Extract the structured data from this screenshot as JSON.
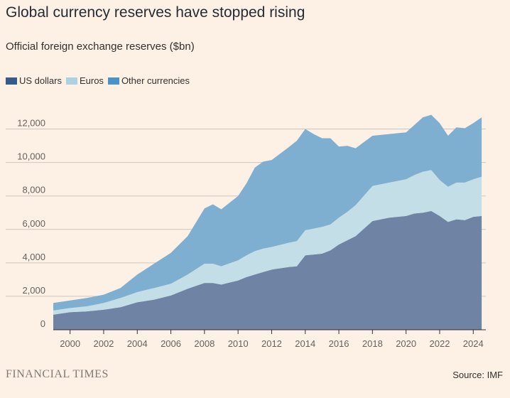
{
  "title": "Global currency reserves have stopped rising",
  "subtitle": "Official foreign exchange reserves ($bn)",
  "source": "Source: IMF",
  "brand": "FINANCIAL TIMES",
  "legend": {
    "usd": "US dollars",
    "eur": "Euros",
    "other": "Other currencies"
  },
  "colors": {
    "usd": "#6f84a5",
    "eur": "#c3dee6",
    "other": "#7eaed0",
    "usd_swatch": "#355a8c",
    "eur_swatch": "#a9d3e3",
    "other_swatch": "#4a93c8",
    "background": "#fdf1e5",
    "grid": "#cec6bd"
  },
  "chart_data": {
    "type": "area",
    "stacked": true,
    "title": "Global currency reserves have stopped rising",
    "subtitle": "Official foreign exchange reserves ($bn)",
    "xlabel": "",
    "ylabel": "",
    "xlim": [
      1999,
      2024.75
    ],
    "ylim": [
      0,
      13000
    ],
    "yticks": [
      0,
      2000,
      4000,
      6000,
      8000,
      10000,
      12000
    ],
    "ytick_labels": [
      "0",
      "2,000",
      "4,000",
      "6,000",
      "8,000",
      "10,000",
      "12,000"
    ],
    "xticks": [
      2000,
      2002,
      2004,
      2006,
      2008,
      2010,
      2012,
      2014,
      2016,
      2018,
      2020,
      2022,
      2024
    ],
    "xtick_labels": [
      "2000",
      "2002",
      "2004",
      "2006",
      "2008",
      "2010",
      "2012",
      "2014",
      "2016",
      "2018",
      "2020",
      "2022",
      "2024"
    ],
    "grid": true,
    "legend_position": "top-left",
    "x": [
      1999.0,
      2000.0,
      2001.0,
      2002.0,
      2003.0,
      2004.0,
      2005.0,
      2006.0,
      2007.0,
      2008.0,
      2008.5,
      2009.0,
      2010.0,
      2010.5,
      2011.0,
      2011.5,
      2012.0,
      2013.0,
      2013.5,
      2014.0,
      2014.5,
      2015.0,
      2015.5,
      2016.0,
      2016.5,
      2017.0,
      2018.0,
      2019.0,
      2020.0,
      2020.5,
      2021.0,
      2021.5,
      2022.0,
      2022.5,
      2023.0,
      2023.5,
      2024.0,
      2024.5
    ],
    "series": [
      {
        "name": "US dollars",
        "values": [
          900,
          1050,
          1100,
          1200,
          1350,
          1650,
          1800,
          2050,
          2450,
          2800,
          2800,
          2700,
          2950,
          3150,
          3300,
          3450,
          3600,
          3750,
          3800,
          4450,
          4500,
          4550,
          4750,
          5100,
          5350,
          5600,
          6500,
          6700,
          6800,
          6950,
          7000,
          7100,
          6800,
          6450,
          6600,
          6550,
          6750,
          6800
        ]
      },
      {
        "name": "Euros",
        "values": [
          250,
          250,
          300,
          400,
          550,
          600,
          700,
          700,
          850,
          1150,
          1150,
          1100,
          1200,
          1300,
          1400,
          1400,
          1350,
          1450,
          1500,
          1500,
          1550,
          1600,
          1550,
          1600,
          1700,
          1850,
          2100,
          2100,
          2200,
          2300,
          2450,
          2450,
          2150,
          2100,
          2200,
          2250,
          2250,
          2350
        ]
      },
      {
        "name": "Other currencies",
        "values": [
          450,
          450,
          500,
          500,
          600,
          1050,
          1450,
          1850,
          2300,
          3300,
          3550,
          3400,
          3850,
          4300,
          5000,
          5200,
          5200,
          5700,
          6000,
          6050,
          5650,
          5300,
          5150,
          4250,
          3950,
          3400,
          3000,
          2900,
          2800,
          3000,
          3250,
          3300,
          3400,
          3050,
          3300,
          3250,
          3350,
          3550
        ]
      }
    ]
  }
}
